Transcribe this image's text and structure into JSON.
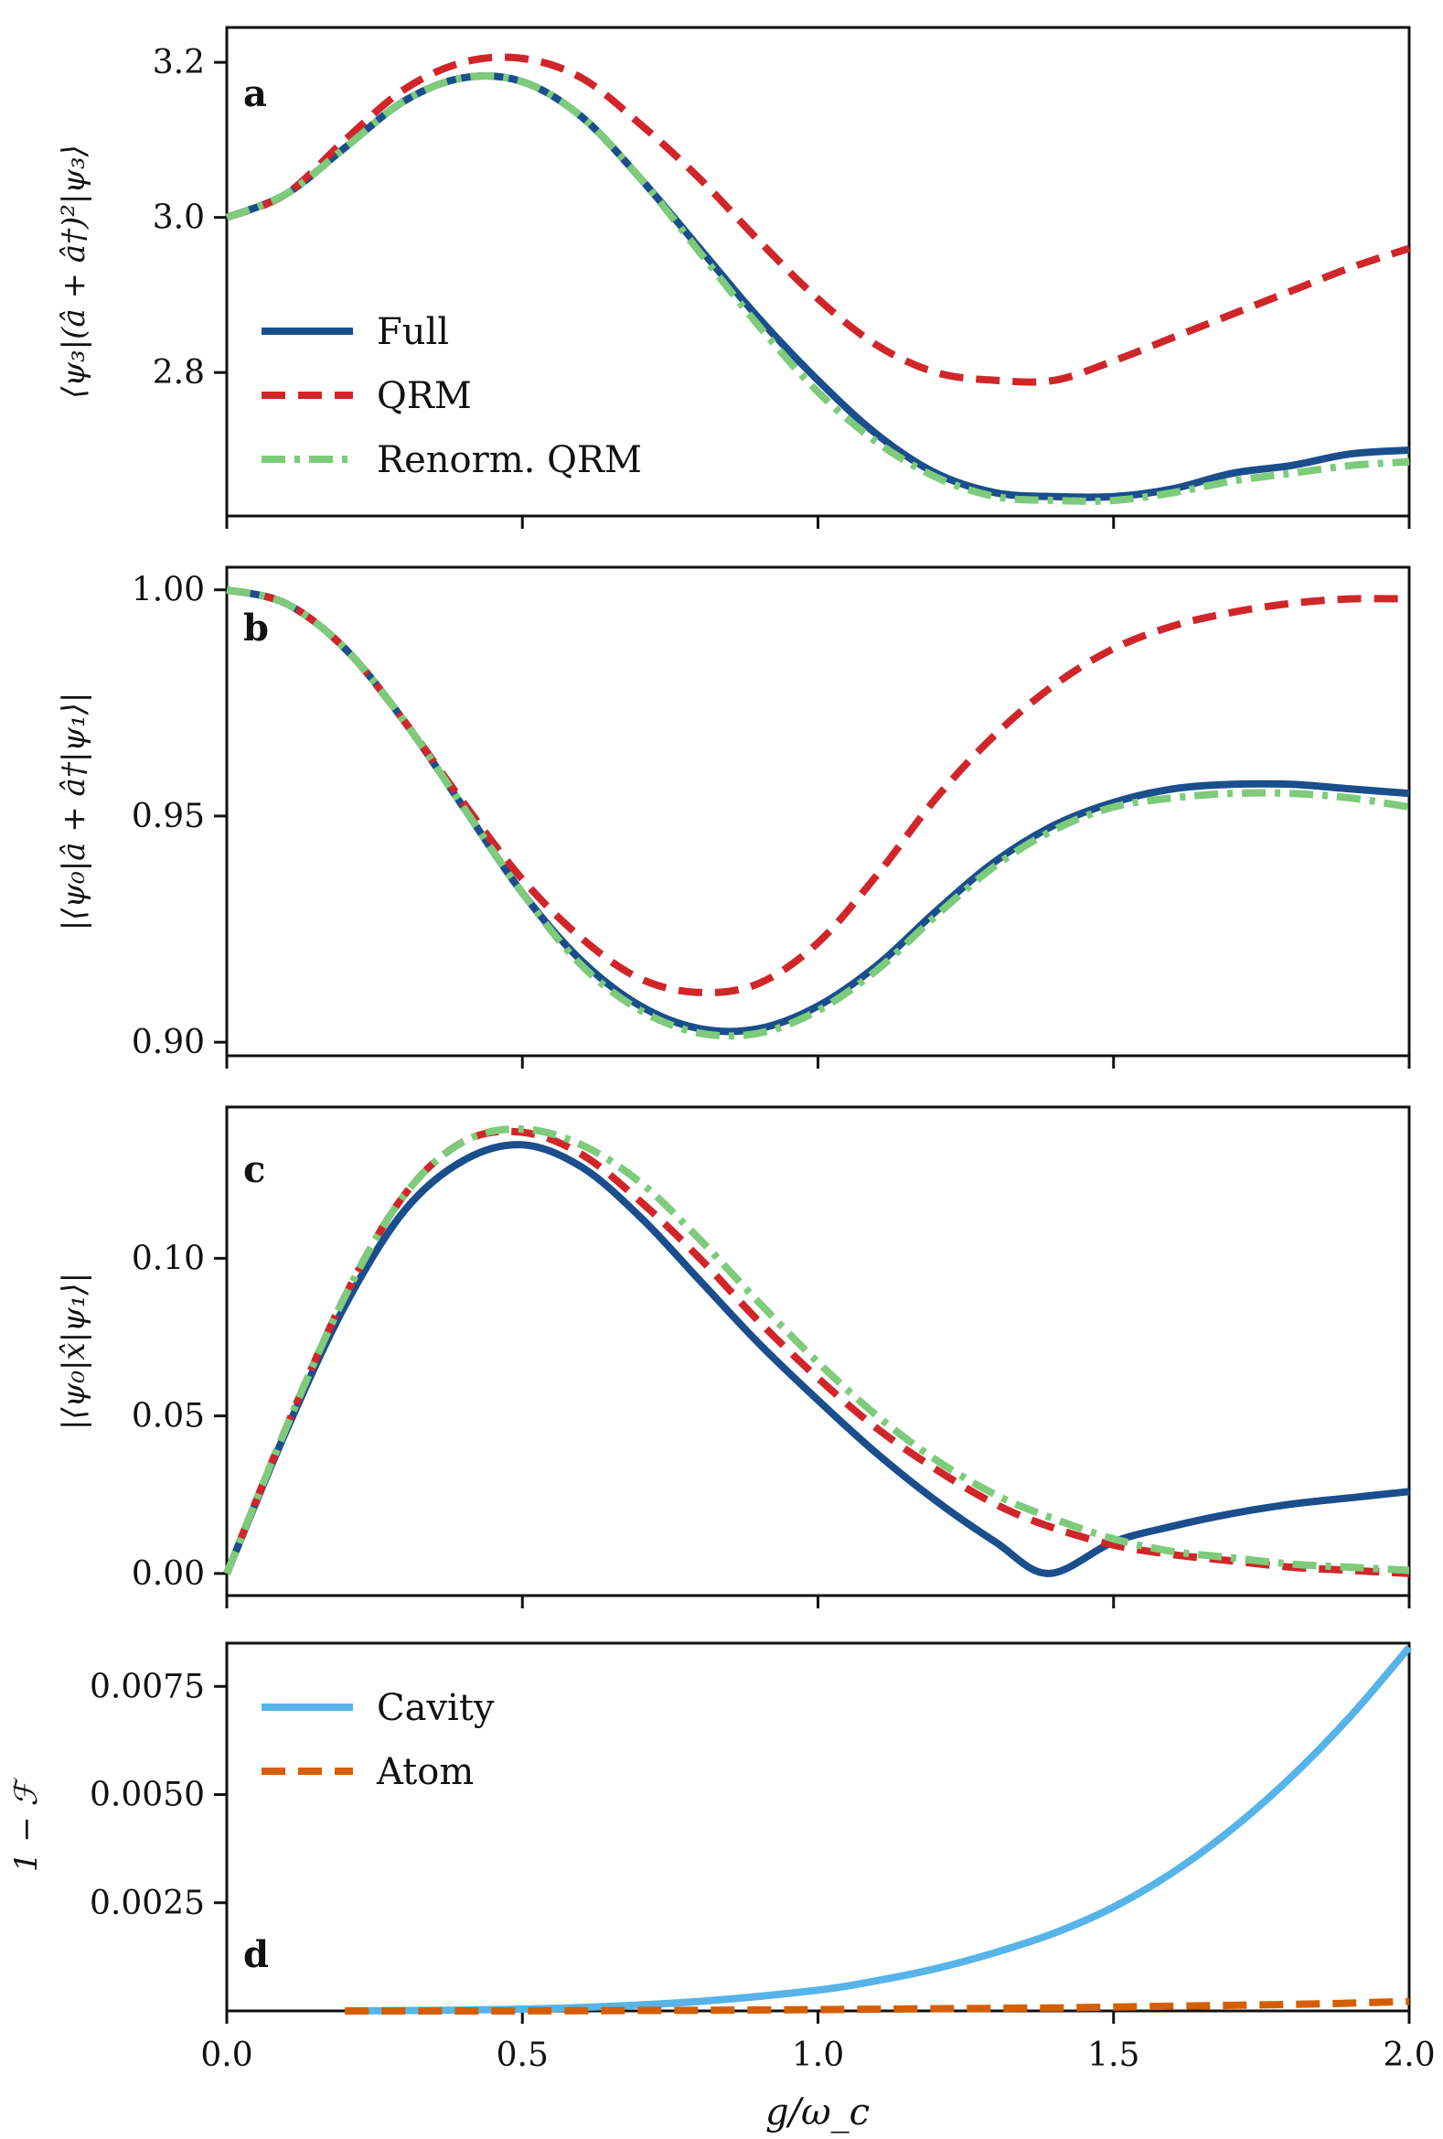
{
  "colors": {
    "Full": "#1a4e8c",
    "QRM": "#d0262a",
    "Renorm. QRM": "#7dcb7b",
    "Cavity": "#56b4e9",
    "Atom": "#d55e00"
  },
  "shared_x": {
    "xlabel": "g/ω_c",
    "xlim": [
      0,
      2
    ],
    "ticks": [
      "0.0",
      "0.5",
      "1.0",
      "1.5",
      "2.0"
    ]
  },
  "chart_data": [
    {
      "panel": "a",
      "type": "line",
      "ylabel": "⟨ψ₃|(â + â†)²|ψ₃⟩",
      "ylim": [
        2.615,
        3.245
      ],
      "yticks": [
        2.8,
        3.0,
        3.2
      ],
      "ytick_labels": [
        "2.8",
        "3.0",
        "3.2"
      ],
      "legend": {
        "placement": "lower-left",
        "entries": [
          "Full",
          "QRM",
          "Renorm. QRM"
        ]
      },
      "x": [
        0.0,
        0.1,
        0.2,
        0.3,
        0.4,
        0.5,
        0.6,
        0.7,
        0.8,
        0.9,
        1.0,
        1.1,
        1.2,
        1.3,
        1.4,
        1.5,
        1.6,
        1.7,
        1.8,
        1.9,
        2.0
      ],
      "series": [
        {
          "name": "Full",
          "style": "solid",
          "values": [
            3.0,
            3.03,
            3.09,
            3.15,
            3.18,
            3.175,
            3.13,
            3.05,
            2.96,
            2.87,
            2.79,
            2.72,
            2.67,
            2.645,
            2.64,
            2.64,
            2.65,
            2.67,
            2.68,
            2.695,
            2.7
          ]
        },
        {
          "name": "QRM",
          "style": "dashed",
          "values": [
            3.0,
            3.03,
            3.1,
            3.165,
            3.2,
            3.205,
            3.18,
            3.12,
            3.05,
            2.97,
            2.895,
            2.835,
            2.8,
            2.79,
            2.79,
            2.815,
            2.845,
            2.875,
            2.905,
            2.935,
            2.96
          ]
        },
        {
          "name": "Renorm. QRM",
          "style": "dashdot",
          "values": [
            3.0,
            3.03,
            3.09,
            3.15,
            3.18,
            3.175,
            3.13,
            3.05,
            2.955,
            2.86,
            2.775,
            2.71,
            2.665,
            2.64,
            2.635,
            2.635,
            2.645,
            2.66,
            2.67,
            2.68,
            2.685
          ]
        }
      ]
    },
    {
      "panel": "b",
      "type": "line",
      "ylabel": "|⟨ψ₀|â + â†|ψ₁⟩|",
      "ylim": [
        0.897,
        1.005
      ],
      "yticks": [
        0.9,
        0.95,
        1.0
      ],
      "ytick_labels": [
        "0.90",
        "0.95",
        "1.00"
      ],
      "x": [
        0.0,
        0.1,
        0.2,
        0.3,
        0.4,
        0.5,
        0.6,
        0.7,
        0.8,
        0.9,
        1.0,
        1.1,
        1.2,
        1.3,
        1.4,
        1.5,
        1.6,
        1.7,
        1.8,
        1.9,
        2.0
      ],
      "series": [
        {
          "name": "Full",
          "style": "solid",
          "values": [
            1.0,
            0.997,
            0.987,
            0.971,
            0.952,
            0.933,
            0.918,
            0.908,
            0.903,
            0.903,
            0.908,
            0.917,
            0.929,
            0.94,
            0.948,
            0.953,
            0.956,
            0.957,
            0.957,
            0.956,
            0.955
          ]
        },
        {
          "name": "QRM",
          "style": "dashed",
          "values": [
            1.0,
            0.997,
            0.987,
            0.971,
            0.953,
            0.936,
            0.923,
            0.914,
            0.911,
            0.913,
            0.922,
            0.937,
            0.954,
            0.968,
            0.979,
            0.987,
            0.992,
            0.995,
            0.997,
            0.998,
            0.998
          ]
        },
        {
          "name": "Renorm. QRM",
          "style": "dashdot",
          "values": [
            1.0,
            0.997,
            0.987,
            0.971,
            0.952,
            0.933,
            0.917,
            0.907,
            0.902,
            0.902,
            0.907,
            0.916,
            0.928,
            0.939,
            0.947,
            0.952,
            0.954,
            0.955,
            0.955,
            0.954,
            0.952
          ]
        }
      ]
    },
    {
      "panel": "c",
      "type": "line",
      "ylabel": "|⟨ψ₀|x̂|ψ₁⟩|",
      "ylim": [
        -0.007,
        0.148
      ],
      "yticks": [
        0.0,
        0.05,
        0.1
      ],
      "ytick_labels": [
        "0.00",
        "0.05",
        "0.10"
      ],
      "x": [
        0.0,
        0.1,
        0.2,
        0.3,
        0.4,
        0.5,
        0.6,
        0.7,
        0.8,
        0.9,
        1.0,
        1.1,
        1.2,
        1.3,
        1.39,
        1.5,
        1.6,
        1.7,
        1.8,
        1.9,
        2.0
      ],
      "series": [
        {
          "name": "Full",
          "style": "solid",
          "values": [
            0.0,
            0.045,
            0.085,
            0.115,
            0.131,
            0.136,
            0.129,
            0.113,
            0.093,
            0.073,
            0.055,
            0.038,
            0.023,
            0.01,
            0.0,
            0.01,
            0.015,
            0.019,
            0.022,
            0.024,
            0.026
          ]
        },
        {
          "name": "QRM",
          "style": "dashed",
          "values": [
            0.0,
            0.046,
            0.088,
            0.12,
            0.137,
            0.14,
            0.133,
            0.118,
            0.1,
            0.08,
            0.062,
            0.046,
            0.033,
            0.022,
            0.015,
            0.009,
            0.006,
            0.004,
            0.002,
            0.001,
            0.0
          ]
        },
        {
          "name": "Renorm. QRM",
          "style": "dashdot",
          "values": [
            0.0,
            0.046,
            0.088,
            0.12,
            0.137,
            0.141,
            0.136,
            0.124,
            0.106,
            0.086,
            0.067,
            0.05,
            0.036,
            0.025,
            0.018,
            0.011,
            0.007,
            0.005,
            0.003,
            0.002,
            0.001
          ]
        }
      ]
    },
    {
      "panel": "d",
      "type": "line",
      "ylabel": "1 − ℱ",
      "ylim": [
        0,
        0.0085
      ],
      "yticks": [
        0.0025,
        0.005,
        0.0075
      ],
      "ytick_labels": [
        "0.0025",
        "0.0050",
        "0.0075"
      ],
      "legend": {
        "placement": "top-left",
        "entries": [
          "Cavity",
          "Atom"
        ]
      },
      "x": [
        0.2,
        0.4,
        0.6,
        0.8,
        1.0,
        1.1,
        1.2,
        1.3,
        1.4,
        1.5,
        1.6,
        1.7,
        1.8,
        1.9,
        2.0
      ],
      "series": [
        {
          "name": "Cavity",
          "style": "solid",
          "values": [
            0.0,
            2e-05,
            8e-05,
            0.00022,
            0.00048,
            0.0007,
            0.00098,
            0.00135,
            0.0018,
            0.0024,
            0.0032,
            0.0042,
            0.0054,
            0.0068,
            0.0084
          ]
        },
        {
          "name": "Atom",
          "style": "dashed",
          "values": [
            0.0,
            0.0,
            5e-06,
            1.5e-05,
            3e-05,
            4e-05,
            5e-05,
            6e-05,
            7e-05,
            9e-05,
            0.00011,
            0.00013,
            0.00015,
            0.00018,
            0.00022
          ]
        }
      ]
    }
  ]
}
